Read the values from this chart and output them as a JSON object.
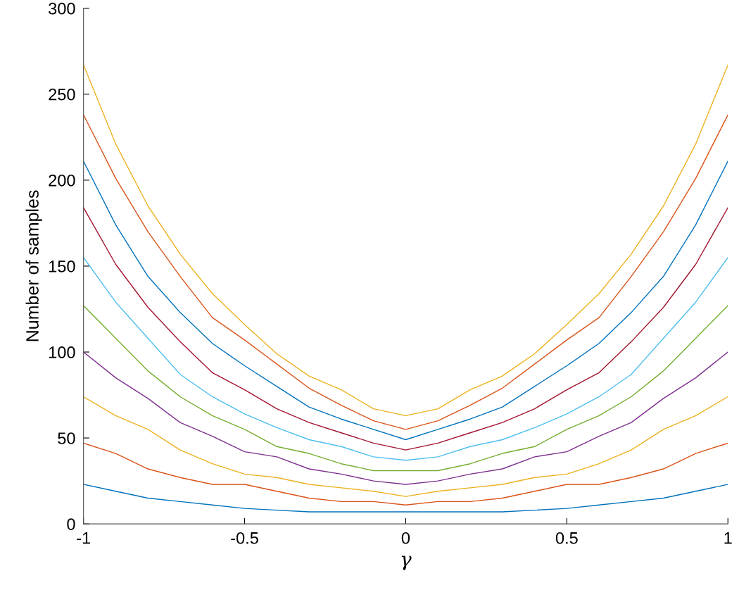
{
  "chart_data": {
    "type": "line",
    "xlabel": "γ",
    "ylabel": "Number of samples",
    "x": [
      -1,
      -0.9,
      -0.8,
      -0.7,
      -0.6,
      -0.5,
      -0.4,
      -0.3,
      -0.2,
      -0.1,
      0,
      0.1,
      0.2,
      0.3,
      0.4,
      0.5,
      0.6,
      0.7,
      0.8,
      0.9,
      1
    ],
    "series": [
      {
        "color": "#0072bd",
        "values": [
          23,
          19,
          15,
          13,
          11,
          9,
          8,
          7,
          7,
          7,
          7,
          7,
          7,
          7,
          8,
          9,
          11,
          13,
          15,
          19,
          23
        ]
      },
      {
        "color": "#d95319",
        "values": [
          47,
          41,
          32,
          27,
          23,
          23,
          19,
          15,
          13,
          13,
          11,
          13,
          13,
          15,
          19,
          23,
          23,
          27,
          32,
          41,
          47
        ]
      },
      {
        "color": "#edb120",
        "values": [
          74,
          63,
          55,
          43,
          35,
          29,
          27,
          23,
          21,
          19,
          16,
          19,
          21,
          23,
          27,
          29,
          35,
          43,
          55,
          63,
          74
        ]
      },
      {
        "color": "#7e2f8e",
        "values": [
          100,
          85,
          73,
          59,
          51,
          42,
          39,
          32,
          29,
          25,
          23,
          25,
          29,
          32,
          39,
          42,
          51,
          59,
          73,
          85,
          100
        ]
      },
      {
        "color": "#77ac30",
        "values": [
          127,
          108,
          89,
          74,
          63,
          55,
          45,
          41,
          35,
          31,
          31,
          31,
          35,
          41,
          45,
          55,
          63,
          74,
          89,
          108,
          127
        ]
      },
      {
        "color": "#4dbeee",
        "values": [
          155,
          129,
          108,
          87,
          74,
          64,
          56,
          49,
          45,
          39,
          37,
          39,
          45,
          49,
          56,
          64,
          74,
          87,
          108,
          129,
          155
        ]
      },
      {
        "color": "#a2142f",
        "values": [
          184,
          151,
          126,
          106,
          88,
          78,
          67,
          59,
          53,
          47,
          43,
          47,
          53,
          59,
          67,
          78,
          88,
          106,
          126,
          151,
          184
        ]
      },
      {
        "color": "#0072bd",
        "values": [
          211,
          174,
          144,
          123,
          105,
          92,
          80,
          68,
          61,
          55,
          49,
          55,
          61,
          68,
          80,
          92,
          105,
          123,
          144,
          174,
          211
        ]
      },
      {
        "color": "#d95319",
        "values": [
          238,
          201,
          170,
          144,
          120,
          107,
          93,
          79,
          69,
          60,
          55,
          60,
          69,
          79,
          93,
          107,
          120,
          144,
          170,
          201,
          238
        ]
      },
      {
        "color": "#edb120",
        "values": [
          267,
          221,
          185,
          157,
          134,
          116,
          99,
          86,
          78,
          67,
          63,
          67,
          78,
          86,
          99,
          116,
          134,
          157,
          185,
          221,
          267
        ]
      }
    ],
    "xlim": [
      -1,
      1
    ],
    "xticks": [
      -1,
      -0.5,
      0,
      0.5,
      1
    ],
    "ylim": [
      0,
      300
    ],
    "yticks": [
      0,
      50,
      100,
      150,
      200,
      250,
      300
    ]
  }
}
